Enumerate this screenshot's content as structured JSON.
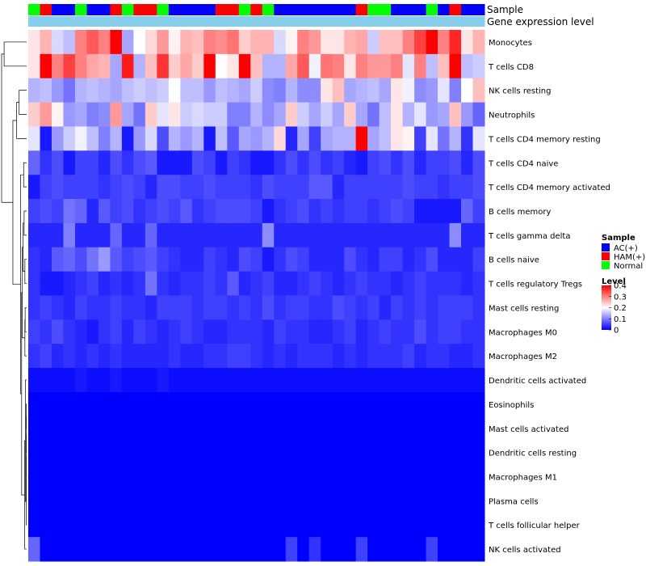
{
  "chart_data": {
    "type": "heatmap",
    "title": "",
    "annotation_tracks": [
      "Sample",
      "Gene expression level"
    ],
    "sample_groups": [
      "Normal",
      "HAM(+)",
      "AC(+)",
      "AC(+)",
      "Normal",
      "AC(+)",
      "AC(+)",
      "HAM(+)",
      "Normal",
      "HAM(+)",
      "HAM(+)",
      "Normal",
      "AC(+)",
      "AC(+)",
      "AC(+)",
      "AC(+)",
      "HAM(+)",
      "HAM(+)",
      "Normal",
      "HAM(+)",
      "Normal",
      "AC(+)",
      "AC(+)",
      "AC(+)",
      "AC(+)",
      "AC(+)",
      "AC(+)",
      "AC(+)",
      "HAM(+)",
      "Normal",
      "Normal",
      "AC(+)",
      "AC(+)",
      "AC(+)",
      "Normal",
      "AC(+)",
      "HAM(+)",
      "AC(+)",
      "AC(+)"
    ],
    "gene_expression_track_color": "#87CEEB",
    "rows": [
      "Monocytes",
      "T cells CD8",
      "NK cells resting",
      "Neutrophils",
      "T cells CD4 memory resting",
      "T cells CD4 naive",
      "T cells CD4 memory activated",
      "B cells memory",
      "T cells gamma delta",
      "B cells naive",
      "T cells regulatory  Tregs",
      "Mast cells resting",
      "Macrophages M0",
      "Macrophages M2",
      "Dendritic cells activated",
      "Eosinophils",
      "Mast cells activated",
      "Dendritic cells resting",
      "Macrophages M1",
      "Plasma cells",
      "T cells follicular helper",
      "NK cells activated"
    ],
    "values": [
      [
        0.22,
        0.26,
        0.17,
        0.15,
        0.3,
        0.33,
        0.3,
        0.4,
        0.13,
        0.2,
        0.23,
        0.28,
        0.21,
        0.26,
        0.25,
        0.3,
        0.29,
        0.31,
        0.24,
        0.26,
        0.26,
        0.17,
        0.21,
        0.3,
        0.28,
        0.22,
        0.22,
        0.26,
        0.27,
        0.16,
        0.25,
        0.25,
        0.3,
        0.35,
        0.4,
        0.3,
        0.37,
        0.22,
        0.26
      ],
      [
        0.22,
        0.4,
        0.3,
        0.35,
        0.3,
        0.27,
        0.26,
        0.13,
        0.38,
        0.14,
        0.25,
        0.36,
        0.24,
        0.27,
        0.24,
        0.4,
        0.2,
        0.22,
        0.4,
        0.25,
        0.14,
        0.14,
        0.27,
        0.33,
        0.19,
        0.31,
        0.3,
        0.22,
        0.3,
        0.28,
        0.28,
        0.3,
        0.18,
        0.3,
        0.15,
        0.25,
        0.4,
        0.15,
        0.16
      ],
      [
        0.14,
        0.15,
        0.12,
        0.09,
        0.14,
        0.15,
        0.14,
        0.13,
        0.15,
        0.16,
        0.15,
        0.16,
        0.2,
        0.15,
        0.15,
        0.12,
        0.15,
        0.14,
        0.13,
        0.16,
        0.11,
        0.1,
        0.14,
        0.11,
        0.11,
        0.22,
        0.25,
        0.13,
        0.14,
        0.15,
        0.13,
        0.22,
        0.19,
        0.11,
        0.12,
        0.18,
        0.1,
        0.2,
        0.25
      ],
      [
        0.24,
        0.28,
        0.21,
        0.12,
        0.13,
        0.1,
        0.11,
        0.28,
        0.13,
        0.09,
        0.24,
        0.18,
        0.22,
        0.16,
        0.17,
        0.16,
        0.16,
        0.1,
        0.1,
        0.14,
        0.11,
        0.13,
        0.24,
        0.16,
        0.13,
        0.16,
        0.13,
        0.24,
        0.13,
        0.09,
        0.15,
        0.22,
        0.14,
        0.18,
        0.12,
        0.13,
        0.25,
        0.12,
        0.08
      ],
      [
        0.18,
        0.02,
        0.12,
        0.16,
        0.19,
        0.15,
        0.1,
        0.14,
        0.02,
        0.12,
        0.17,
        0.06,
        0.14,
        0.12,
        0.14,
        0.02,
        0.15,
        0.07,
        0.13,
        0.12,
        0.14,
        0.23,
        0.03,
        0.13,
        0.05,
        0.13,
        0.14,
        0.14,
        0.4,
        0.13,
        0.15,
        0.22,
        0.21,
        0.05,
        0.18,
        0.09,
        0.14,
        0.04,
        0.18
      ],
      [
        0.08,
        0.04,
        0.06,
        0.02,
        0.05,
        0.05,
        0.03,
        0.06,
        0.04,
        0.06,
        0.07,
        0.02,
        0.02,
        0.02,
        0.06,
        0.05,
        0.02,
        0.05,
        0.04,
        0.02,
        0.02,
        0.04,
        0.06,
        0.04,
        0.06,
        0.04,
        0.05,
        0.03,
        0.02,
        0.05,
        0.06,
        0.04,
        0.06,
        0.03,
        0.05,
        0.05,
        0.06,
        0.03,
        0.06
      ],
      [
        0.02,
        0.05,
        0.06,
        0.05,
        0.05,
        0.05,
        0.04,
        0.05,
        0.06,
        0.05,
        0.03,
        0.06,
        0.06,
        0.05,
        0.05,
        0.06,
        0.05,
        0.05,
        0.05,
        0.04,
        0.06,
        0.05,
        0.05,
        0.05,
        0.07,
        0.07,
        0.03,
        0.05,
        0.05,
        0.05,
        0.05,
        0.05,
        0.06,
        0.05,
        0.05,
        0.04,
        0.05,
        0.05,
        0.06
      ],
      [
        0.05,
        0.06,
        0.05,
        0.09,
        0.08,
        0.03,
        0.07,
        0.05,
        0.06,
        0.04,
        0.05,
        0.06,
        0.05,
        0.07,
        0.04,
        0.05,
        0.06,
        0.06,
        0.06,
        0.05,
        0.02,
        0.04,
        0.05,
        0.06,
        0.04,
        0.05,
        0.04,
        0.05,
        0.05,
        0.04,
        0.05,
        0.06,
        0.05,
        0.02,
        0.02,
        0.02,
        0.02,
        0.08,
        0.05
      ],
      [
        0.03,
        0.03,
        0.03,
        0.1,
        0.03,
        0.03,
        0.03,
        0.08,
        0.03,
        0.03,
        0.08,
        0.03,
        0.03,
        0.03,
        0.03,
        0.03,
        0.03,
        0.03,
        0.03,
        0.03,
        0.11,
        0.03,
        0.03,
        0.03,
        0.03,
        0.03,
        0.03,
        0.03,
        0.03,
        0.03,
        0.03,
        0.03,
        0.03,
        0.03,
        0.03,
        0.03,
        0.11,
        0.03,
        0.03
      ],
      [
        0.04,
        0.03,
        0.07,
        0.08,
        0.06,
        0.09,
        0.12,
        0.07,
        0.05,
        0.06,
        0.07,
        0.05,
        0.04,
        0.03,
        0.03,
        0.05,
        0.04,
        0.03,
        0.06,
        0.05,
        0.02,
        0.04,
        0.06,
        0.05,
        0.03,
        0.03,
        0.03,
        0.06,
        0.04,
        0.03,
        0.05,
        0.05,
        0.03,
        0.04,
        0.06,
        0.03,
        0.03,
        0.03,
        0.05
      ],
      [
        0.04,
        0.02,
        0.02,
        0.03,
        0.04,
        0.05,
        0.03,
        0.04,
        0.03,
        0.04,
        0.09,
        0.04,
        0.03,
        0.04,
        0.04,
        0.05,
        0.04,
        0.07,
        0.03,
        0.04,
        0.05,
        0.03,
        0.03,
        0.04,
        0.05,
        0.04,
        0.03,
        0.04,
        0.05,
        0.04,
        0.04,
        0.03,
        0.04,
        0.05,
        0.04,
        0.04,
        0.04,
        0.03,
        0.04
      ],
      [
        0.04,
        0.05,
        0.04,
        0.03,
        0.05,
        0.04,
        0.04,
        0.05,
        0.04,
        0.04,
        0.03,
        0.05,
        0.05,
        0.05,
        0.04,
        0.05,
        0.05,
        0.04,
        0.05,
        0.04,
        0.06,
        0.04,
        0.05,
        0.05,
        0.04,
        0.04,
        0.06,
        0.05,
        0.04,
        0.05,
        0.03,
        0.05,
        0.04,
        0.05,
        0.04,
        0.05,
        0.05,
        0.05,
        0.04
      ],
      [
        0.05,
        0.04,
        0.06,
        0.04,
        0.03,
        0.02,
        0.04,
        0.05,
        0.03,
        0.05,
        0.04,
        0.03,
        0.04,
        0.05,
        0.04,
        0.03,
        0.03,
        0.04,
        0.04,
        0.04,
        0.03,
        0.05,
        0.04,
        0.04,
        0.03,
        0.03,
        0.04,
        0.05,
        0.03,
        0.04,
        0.05,
        0.04,
        0.04,
        0.06,
        0.04,
        0.05,
        0.05,
        0.04,
        0.04
      ],
      [
        0.04,
        0.05,
        0.03,
        0.04,
        0.03,
        0.04,
        0.03,
        0.04,
        0.03,
        0.03,
        0.03,
        0.03,
        0.04,
        0.03,
        0.03,
        0.04,
        0.04,
        0.05,
        0.05,
        0.04,
        0.03,
        0.04,
        0.03,
        0.04,
        0.04,
        0.04,
        0.03,
        0.04,
        0.03,
        0.04,
        0.04,
        0.04,
        0.05,
        0.03,
        0.04,
        0.04,
        0.03,
        0.03,
        0.04
      ],
      [
        0.01,
        0.01,
        0.01,
        0.01,
        0.02,
        0.01,
        0.01,
        0.02,
        0.01,
        0.01,
        0.01,
        0.02,
        0.01,
        0.01,
        0.01,
        0.01,
        0.01,
        0.01,
        0.01,
        0.01,
        0.01,
        0.01,
        0.01,
        0.01,
        0.01,
        0.01,
        0.01,
        0.01,
        0.01,
        0.01,
        0.01,
        0.01,
        0.01,
        0.01,
        0.01,
        0.01,
        0.01,
        0.01,
        0.01
      ],
      [
        0,
        0,
        0,
        0,
        0,
        0,
        0,
        0,
        0,
        0,
        0,
        0,
        0,
        0,
        0,
        0,
        0,
        0,
        0,
        0,
        0,
        0,
        0,
        0,
        0,
        0,
        0,
        0,
        0,
        0,
        0,
        0,
        0,
        0,
        0,
        0,
        0,
        0,
        0
      ],
      [
        0,
        0,
        0,
        0,
        0,
        0,
        0,
        0,
        0,
        0,
        0,
        0,
        0,
        0,
        0,
        0,
        0,
        0,
        0,
        0,
        0,
        0,
        0,
        0,
        0,
        0,
        0,
        0,
        0,
        0,
        0,
        0,
        0,
        0,
        0,
        0,
        0,
        0,
        0
      ],
      [
        0,
        0,
        0,
        0,
        0,
        0,
        0,
        0,
        0,
        0,
        0,
        0,
        0,
        0,
        0,
        0,
        0,
        0,
        0,
        0,
        0,
        0,
        0,
        0,
        0,
        0,
        0,
        0,
        0,
        0,
        0,
        0,
        0,
        0,
        0,
        0,
        0,
        0,
        0
      ],
      [
        0,
        0,
        0,
        0,
        0,
        0,
        0,
        0,
        0,
        0,
        0,
        0,
        0,
        0,
        0,
        0,
        0,
        0,
        0,
        0,
        0,
        0,
        0,
        0,
        0,
        0,
        0,
        0,
        0,
        0,
        0,
        0,
        0,
        0,
        0,
        0,
        0,
        0,
        0
      ],
      [
        0,
        0,
        0,
        0,
        0,
        0,
        0,
        0,
        0,
        0,
        0,
        0,
        0,
        0,
        0,
        0,
        0,
        0,
        0,
        0,
        0,
        0,
        0,
        0,
        0,
        0,
        0,
        0,
        0,
        0,
        0,
        0,
        0,
        0,
        0,
        0,
        0,
        0,
        0
      ],
      [
        0,
        0,
        0,
        0,
        0,
        0,
        0,
        0,
        0,
        0,
        0,
        0,
        0,
        0,
        0,
        0,
        0,
        0,
        0,
        0,
        0,
        0,
        0,
        0,
        0,
        0,
        0,
        0,
        0,
        0,
        0,
        0,
        0,
        0,
        0,
        0,
        0,
        0,
        0
      ],
      [
        0.08,
        0,
        0,
        0,
        0,
        0,
        0,
        0,
        0,
        0,
        0,
        0,
        0,
        0,
        0,
        0,
        0,
        0,
        0,
        0,
        0,
        0,
        0.05,
        0,
        0.04,
        0,
        0,
        0,
        0.05,
        0,
        0,
        0,
        0,
        0,
        0.05,
        0,
        0,
        0,
        0
      ]
    ],
    "color_scale": {
      "min": 0,
      "max": 0.4,
      "colors": [
        "#0000FF",
        "#FFFFFF",
        "#FF0000"
      ]
    },
    "legend": {
      "sample": {
        "title": "Sample",
        "entries": [
          {
            "label": "AC(+)",
            "color": "#0000FF"
          },
          {
            "label": "HAM(+)",
            "color": "#FF0000"
          },
          {
            "label": "Normal",
            "color": "#00FF00"
          }
        ]
      },
      "level": {
        "title": "Level",
        "ticks": [
          "0.4",
          "0.3",
          "0.2",
          "0.1",
          "0"
        ],
        "tick_values": [
          0.4,
          0.3,
          0.2,
          0.1,
          0
        ]
      },
      "placement": "right"
    },
    "dendrogram": "rows"
  }
}
